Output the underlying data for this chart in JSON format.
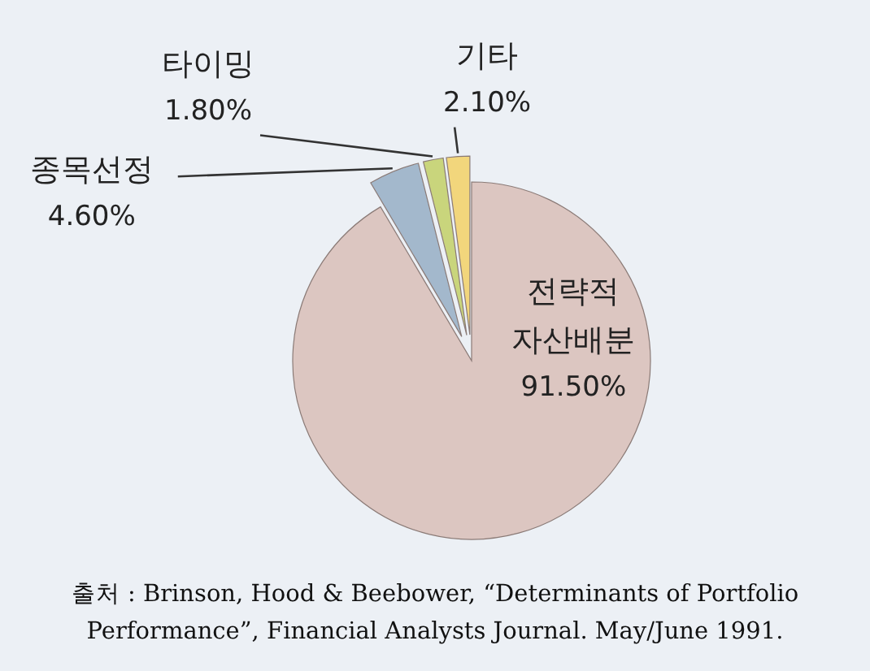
{
  "chart_data": {
    "type": "pie",
    "categories": [
      "전략적 자산배분",
      "종목선정",
      "타이밍",
      "기타"
    ],
    "values": [
      91.5,
      4.6,
      1.8,
      2.1
    ],
    "colors": [
      "#dcc6c1",
      "#a3b8cc",
      "#c9d57c",
      "#f2d67c"
    ],
    "value_labels": [
      "91.50%",
      "4.60%",
      "1.80%",
      "2.10%"
    ],
    "annotations": [
      "출처 : Brinson, Hood & Beebower, “Determinants of Portfolio Performance”, Financial Analysts Journal. May/June 1991."
    ]
  }
}
